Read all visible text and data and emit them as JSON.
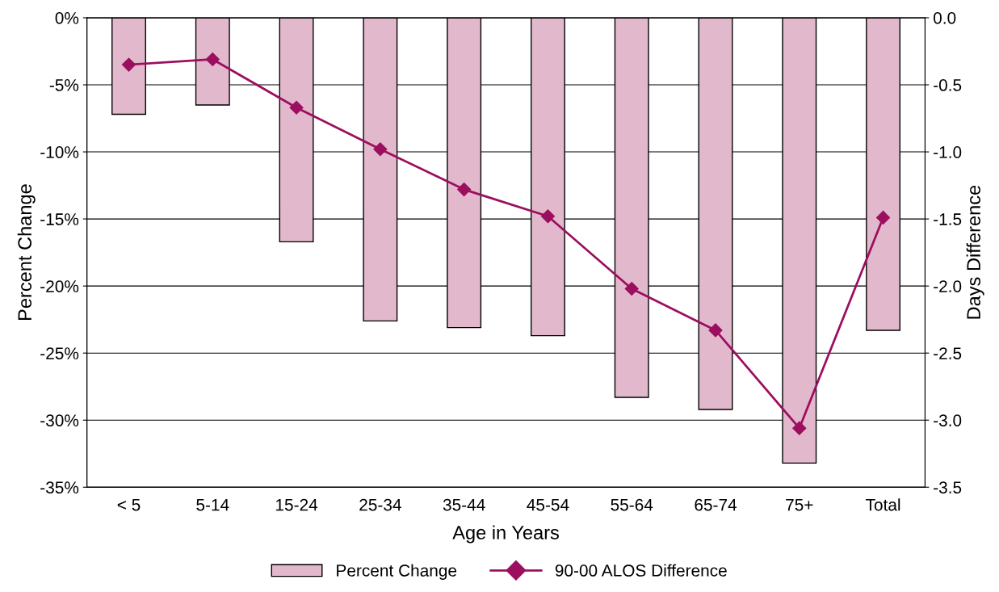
{
  "chart_data": {
    "type": "bar",
    "xlabel": "Age in Years",
    "ylabel": "Percent Change",
    "y2label": "Days Difference",
    "categories": [
      "< 5",
      "5-14",
      "15-24",
      "25-34",
      "35-44",
      "45-54",
      "55-64",
      "65-74",
      "75+",
      "Total"
    ],
    "series": [
      {
        "name": "Percent Change",
        "color": "#e2b9cc",
        "values": [
          -7.2,
          -6.5,
          -16.7,
          -22.6,
          -23.1,
          -23.7,
          -28.3,
          -29.2,
          -33.2,
          -23.3
        ]
      },
      {
        "name": "90-00 ALOS Difference",
        "type": "line",
        "axis": "y2",
        "color": "#9c0f5f",
        "marker": "diamond",
        "values": [
          -0.35,
          -0.31,
          -0.67,
          -0.98,
          -1.28,
          -1.48,
          -2.02,
          -2.33,
          -3.06,
          -1.49
        ]
      }
    ],
    "ylim": [
      -35,
      0
    ],
    "yticks": [
      {
        "value": 0,
        "label": "0%"
      },
      {
        "value": -5,
        "label": "-5%"
      },
      {
        "value": -10,
        "label": "-10%"
      },
      {
        "value": -15,
        "label": "-15%"
      },
      {
        "value": -20,
        "label": "-20%"
      },
      {
        "value": -25,
        "label": "-25%"
      },
      {
        "value": -30,
        "label": "-30%"
      },
      {
        "value": -35,
        "label": "-35%"
      }
    ],
    "y2lim": [
      -3.5,
      0
    ],
    "y2ticks": [
      {
        "value": 0,
        "label": "0.0"
      },
      {
        "value": -0.5,
        "label": "-0.5"
      },
      {
        "value": -1,
        "label": "-1.0"
      },
      {
        "value": -1.5,
        "label": "-1.5"
      },
      {
        "value": -2,
        "label": "-2.0"
      },
      {
        "value": -2.5,
        "label": "-2.5"
      },
      {
        "value": -3,
        "label": "-3.0"
      },
      {
        "value": -3.5,
        "label": "-3.5"
      }
    ],
    "grid": "y",
    "legend": "bottom"
  }
}
